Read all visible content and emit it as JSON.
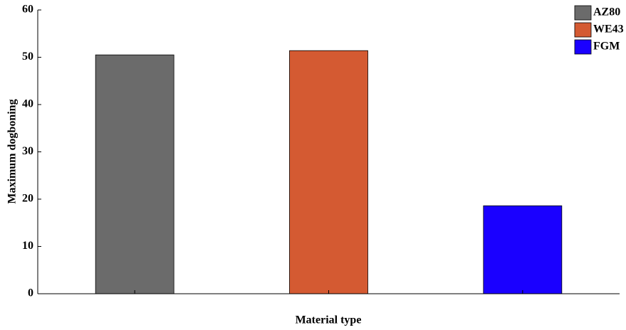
{
  "chart_data": {
    "type": "bar",
    "categories": [
      null,
      null,
      null
    ],
    "series": [
      {
        "name": "AZ80",
        "color": "#6b6b6b",
        "values": [
          50.5,
          null,
          null
        ]
      },
      {
        "name": "WE43",
        "color": "#d45a32",
        "values": [
          null,
          51.4,
          null
        ]
      },
      {
        "name": "FGM",
        "color": "#1a00ff",
        "values": [
          null,
          null,
          18.6
        ]
      }
    ],
    "x_label": "Material type",
    "y_label": "Maximum dogboning",
    "ylim": [
      0,
      60
    ],
    "yticks": [
      0,
      10,
      20,
      30,
      40,
      50,
      60
    ],
    "grid": false,
    "legend": "upper right"
  }
}
